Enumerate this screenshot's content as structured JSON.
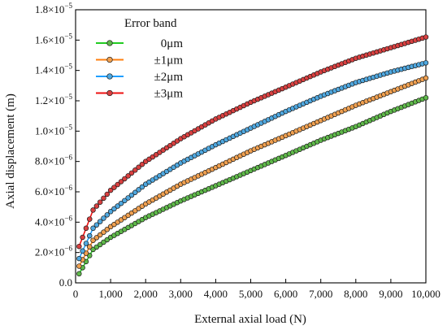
{
  "chart_data": {
    "type": "scatter",
    "xlabel": "External axial load (N)",
    "ylabel": "Axial displacement (m)",
    "xlim": [
      0,
      10000
    ],
    "ylim": [
      0,
      1.8e-05
    ],
    "x_ticks": [
      0,
      1000,
      2000,
      3000,
      4000,
      5000,
      6000,
      7000,
      8000,
      9000,
      10000
    ],
    "x_tick_labels": [
      "0",
      "1,000",
      "2,000",
      "3,000",
      "4,000",
      "5,000",
      "6,000",
      "7,000",
      "8,000",
      "9,000",
      "10,000"
    ],
    "y_ticks": [
      0,
      2e-06,
      4e-06,
      6e-06,
      8e-06,
      1e-05,
      1.2e-05,
      1.4e-05,
      1.6e-05,
      1.8e-05
    ],
    "y_tick_labels": [
      {
        "mantissa": "0.0",
        "exp": ""
      },
      {
        "mantissa": "2.0×10",
        "exp": "−6"
      },
      {
        "mantissa": "4.0×10",
        "exp": "−6"
      },
      {
        "mantissa": "6.0×10",
        "exp": "−6"
      },
      {
        "mantissa": "8.0×10",
        "exp": "−6"
      },
      {
        "mantissa": "1.0×10",
        "exp": "−5"
      },
      {
        "mantissa": "1.2×10",
        "exp": "−5"
      },
      {
        "mantissa": "1.4×10",
        "exp": "−5"
      },
      {
        "mantissa": "1.6×10",
        "exp": "−5"
      },
      {
        "mantissa": "1.8×10",
        "exp": "−5"
      }
    ],
    "grid": false,
    "legend": {
      "title": "Error band",
      "placement": "top-left"
    },
    "marker": "circle",
    "x_start": 100,
    "x_end": 10000,
    "x_step": 100,
    "series": [
      {
        "name": "0μm",
        "line_color": "#22cc22",
        "marker_color": "#5fb94a",
        "x": [
          100,
          500,
          1000,
          2000,
          3000,
          4000,
          5000,
          6000,
          7000,
          8000,
          9000,
          10000
        ],
        "values": [
          6e-07,
          2.2e-06,
          3e-06,
          4.3e-06,
          5.4e-06,
          6.4e-06,
          7.4e-06,
          8.4e-06,
          9.4e-06,
          1.03e-05,
          1.13e-05,
          1.22e-05
        ]
      },
      {
        "name": "±1μm",
        "line_color": "#ff7f0e",
        "marker_color": "#f0a050",
        "x": [
          100,
          500,
          1000,
          2000,
          3000,
          4000,
          5000,
          6000,
          7000,
          8000,
          9000,
          10000
        ],
        "values": [
          1.1e-06,
          2.8e-06,
          3.7e-06,
          5.2e-06,
          6.5e-06,
          7.6e-06,
          8.7e-06,
          9.7e-06,
          1.07e-05,
          1.17e-05,
          1.26e-05,
          1.35e-05
        ]
      },
      {
        "name": "±2μm",
        "line_color": "#1f9fff",
        "marker_color": "#4fa8e0",
        "x": [
          100,
          500,
          1000,
          2000,
          3000,
          4000,
          5000,
          6000,
          7000,
          8000,
          9000,
          10000
        ],
        "values": [
          1.6e-06,
          3.6e-06,
          4.7e-06,
          6.5e-06,
          7.9e-06,
          9.1e-06,
          1.02e-05,
          1.13e-05,
          1.23e-05,
          1.32e-05,
          1.39e-05,
          1.45e-05
        ]
      },
      {
        "name": "±3μm",
        "line_color": "#ee1111",
        "marker_color": "#d94040",
        "x": [
          100,
          500,
          1000,
          2000,
          3000,
          4000,
          5000,
          6000,
          7000,
          8000,
          9000,
          10000
        ],
        "values": [
          2.4e-06,
          4.8e-06,
          6.1e-06,
          8e-06,
          9.5e-06,
          1.08e-05,
          1.19e-05,
          1.29e-05,
          1.39e-05,
          1.48e-05,
          1.55e-05,
          1.62e-05
        ]
      }
    ]
  }
}
